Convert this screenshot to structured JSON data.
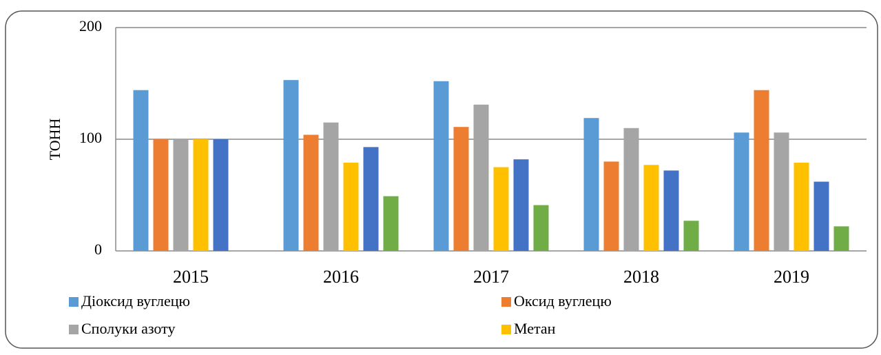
{
  "chart_data": {
    "type": "bar",
    "y_label": "ТОНН",
    "categories": [
      "2015",
      "2016",
      "2017",
      "2018",
      "2019"
    ],
    "series": [
      {
        "name": "Діоксид вуглецю",
        "color": "#5b9bd5",
        "values": [
          144,
          153,
          152,
          119,
          106
        ]
      },
      {
        "name": "Оксид вуглецю",
        "color": "#ed7d31",
        "values": [
          100,
          104,
          111,
          80,
          144
        ]
      },
      {
        "name": "Сполуки азоту",
        "color": "#a5a5a5",
        "values": [
          100,
          115,
          131,
          110,
          106
        ]
      },
      {
        "name": "Метан",
        "color": "#ffc000",
        "values": [
          100,
          79,
          75,
          77,
          79
        ]
      },
      {
        "color": "#4472c4",
        "values": [
          100,
          93,
          82,
          72,
          62
        ]
      },
      {
        "color": "#70ad47",
        "values": [
          null,
          49,
          41,
          27,
          22
        ]
      }
    ],
    "ylim": [
      0,
      200
    ],
    "yticks": [
      0,
      100,
      200
    ],
    "grid": true
  }
}
